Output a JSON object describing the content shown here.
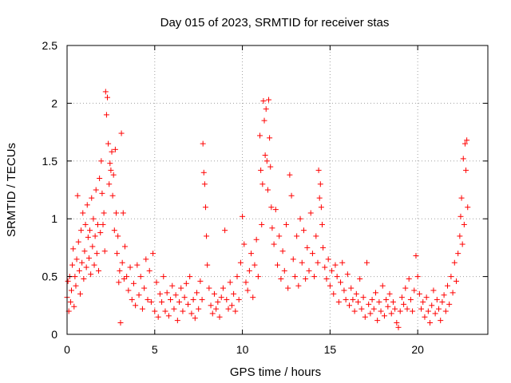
{
  "colors": {
    "marker": "#ff0000",
    "grid": "#a0a0a0",
    "axis": "#000000"
  },
  "chart_data": {
    "type": "scatter",
    "title": "Day 015 of 2023, SRMTID for receiver stas",
    "xlabel": "GPS time / hours",
    "ylabel": "SRMTID / TECUs",
    "xlim": [
      0,
      24
    ],
    "ylim": [
      0,
      2.5
    ],
    "xticks": [
      0,
      5,
      10,
      15,
      20
    ],
    "xtick_labels": [
      "0",
      "5",
      "10",
      "15",
      "20"
    ],
    "yticks": [
      0,
      0.5,
      1,
      1.5,
      2,
      2.5
    ],
    "ytick_labels": [
      "0",
      "0.5",
      "1",
      "1.5",
      "2",
      "2.5"
    ],
    "grid": true,
    "marker": "+",
    "series": [
      {
        "name": "SRMTID",
        "x": [
          0.0,
          0.05,
          0.1,
          0.15,
          0.2,
          0.25,
          0.3,
          0.35,
          0.4,
          0.45,
          0.5,
          0.55,
          0.6,
          0.65,
          0.7,
          0.75,
          0.8,
          0.85,
          0.9,
          0.95,
          1.0,
          1.05,
          1.1,
          1.15,
          1.2,
          1.25,
          1.3,
          1.35,
          1.4,
          1.45,
          1.5,
          1.55,
          1.6,
          1.65,
          1.7,
          1.75,
          1.8,
          1.85,
          1.9,
          1.95,
          2.0,
          2.05,
          2.1,
          2.15,
          2.2,
          2.25,
          2.3,
          2.35,
          2.4,
          2.45,
          2.5,
          2.55,
          2.6,
          2.65,
          2.7,
          2.75,
          2.8,
          2.85,
          2.9,
          2.95,
          3.0,
          3.05,
          3.1,
          3.15,
          3.2,
          3.25,
          3.3,
          3.4,
          3.5,
          3.6,
          3.7,
          3.8,
          3.9,
          4.0,
          4.1,
          4.2,
          4.3,
          4.4,
          4.5,
          4.6,
          4.7,
          4.8,
          4.9,
          5.0,
          5.1,
          5.2,
          5.3,
          5.4,
          5.5,
          5.6,
          5.7,
          5.8,
          5.9,
          6.0,
          6.1,
          6.2,
          6.3,
          6.4,
          6.5,
          6.6,
          6.7,
          6.8,
          6.9,
          7.0,
          7.1,
          7.2,
          7.3,
          7.4,
          7.5,
          7.6,
          7.7,
          7.75,
          7.8,
          7.85,
          7.9,
          7.95,
          8.0,
          8.1,
          8.2,
          8.3,
          8.4,
          8.5,
          8.6,
          8.7,
          8.8,
          8.9,
          9.0,
          9.1,
          9.2,
          9.3,
          9.4,
          9.5,
          9.6,
          9.7,
          9.8,
          9.9,
          10.0,
          10.1,
          10.2,
          10.3,
          10.4,
          10.5,
          10.6,
          10.7,
          10.8,
          10.9,
          11.0,
          11.05,
          11.1,
          11.15,
          11.2,
          11.25,
          11.3,
          11.35,
          11.4,
          11.45,
          11.5,
          11.55,
          11.6,
          11.65,
          11.7,
          11.8,
          11.9,
          12.0,
          12.1,
          12.2,
          12.3,
          12.4,
          12.5,
          12.6,
          12.7,
          12.8,
          12.9,
          13.0,
          13.1,
          13.2,
          13.3,
          13.4,
          13.5,
          13.6,
          13.7,
          13.8,
          13.9,
          14.0,
          14.1,
          14.2,
          14.3,
          14.35,
          14.4,
          14.45,
          14.5,
          14.55,
          14.6,
          14.7,
          14.8,
          14.9,
          15.0,
          15.1,
          15.2,
          15.3,
          15.4,
          15.5,
          15.6,
          15.7,
          15.8,
          15.9,
          16.0,
          16.1,
          16.2,
          16.3,
          16.4,
          16.5,
          16.6,
          16.7,
          16.8,
          16.9,
          17.0,
          17.1,
          17.2,
          17.3,
          17.4,
          17.5,
          17.6,
          17.7,
          17.8,
          17.9,
          18.0,
          18.1,
          18.2,
          18.3,
          18.4,
          18.5,
          18.6,
          18.7,
          18.8,
          18.9,
          19.0,
          19.1,
          19.2,
          19.3,
          19.4,
          19.5,
          19.6,
          19.7,
          19.8,
          19.9,
          20.0,
          20.1,
          20.2,
          20.3,
          20.4,
          20.5,
          20.6,
          20.7,
          20.8,
          20.9,
          21.0,
          21.1,
          21.2,
          21.3,
          21.4,
          21.5,
          21.6,
          21.7,
          21.8,
          21.9,
          22.0,
          22.1,
          22.2,
          22.3,
          22.4,
          22.45,
          22.5,
          22.55,
          22.6,
          22.65,
          22.7,
          22.75,
          22.8,
          22.85
        ],
        "y": [
          0.32,
          0.46,
          0.2,
          0.5,
          0.28,
          0.38,
          0.6,
          0.74,
          0.24,
          0.5,
          0.42,
          0.65,
          1.2,
          0.8,
          0.55,
          0.35,
          0.9,
          0.62,
          1.05,
          0.48,
          0.72,
          0.95,
          0.58,
          1.12,
          0.84,
          0.66,
          0.9,
          0.52,
          1.18,
          0.76,
          1.0,
          0.6,
          0.85,
          1.25,
          0.7,
          0.95,
          0.55,
          1.35,
          0.88,
          1.5,
          1.22,
          0.95,
          1.05,
          0.72,
          2.1,
          1.9,
          2.05,
          1.65,
          1.3,
          1.48,
          1.42,
          1.58,
          1.2,
          1.38,
          0.9,
          1.6,
          1.05,
          0.7,
          0.85,
          0.45,
          0.55,
          0.1,
          1.74,
          0.62,
          1.05,
          0.48,
          0.76,
          0.5,
          0.38,
          0.58,
          0.3,
          0.44,
          0.25,
          0.6,
          0.34,
          0.5,
          0.22,
          0.4,
          0.65,
          0.3,
          0.55,
          0.28,
          0.7,
          0.2,
          0.45,
          0.15,
          0.35,
          0.28,
          0.5,
          0.2,
          0.36,
          0.16,
          0.3,
          0.42,
          0.22,
          0.34,
          0.12,
          0.28,
          0.4,
          0.2,
          0.32,
          0.44,
          0.26,
          0.5,
          0.18,
          0.3,
          0.14,
          0.36,
          0.22,
          0.46,
          0.3,
          1.65,
          1.4,
          1.3,
          1.1,
          0.85,
          0.6,
          0.4,
          0.25,
          0.18,
          0.35,
          0.22,
          0.28,
          0.15,
          0.32,
          0.4,
          0.9,
          0.3,
          0.22,
          0.45,
          0.25,
          0.35,
          0.2,
          0.5,
          0.3,
          0.62,
          1.02,
          0.78,
          0.45,
          0.38,
          0.55,
          0.7,
          0.32,
          0.6,
          0.82,
          0.5,
          1.72,
          1.42,
          0.95,
          1.3,
          2.02,
          1.85,
          1.55,
          1.95,
          1.5,
          1.25,
          2.03,
          1.7,
          1.45,
          1.1,
          0.92,
          0.78,
          1.08,
          0.6,
          0.85,
          0.48,
          0.72,
          0.55,
          0.95,
          0.4,
          1.38,
          1.2,
          0.65,
          0.5,
          0.85,
          0.42,
          1.0,
          0.62,
          0.9,
          0.48,
          0.75,
          0.55,
          1.05,
          0.7,
          0.5,
          0.85,
          0.62,
          1.42,
          1.18,
          1.3,
          1.1,
          0.95,
          0.75,
          0.58,
          0.48,
          0.65,
          0.42,
          0.55,
          0.35,
          0.6,
          0.5,
          0.28,
          0.45,
          0.62,
          0.38,
          0.3,
          0.52,
          0.25,
          0.4,
          0.3,
          0.2,
          0.35,
          0.28,
          0.48,
          0.22,
          0.32,
          0.15,
          0.62,
          0.26,
          0.18,
          0.3,
          0.22,
          0.36,
          0.12,
          0.28,
          0.2,
          0.42,
          0.16,
          0.3,
          0.24,
          0.35,
          0.18,
          0.28,
          0.22,
          0.1,
          0.06,
          0.2,
          0.32,
          0.26,
          0.4,
          0.22,
          0.48,
          0.3,
          0.2,
          0.38,
          0.68,
          0.5,
          0.35,
          0.22,
          0.28,
          0.15,
          0.32,
          0.2,
          0.1,
          0.25,
          0.38,
          0.18,
          0.3,
          0.22,
          0.12,
          0.28,
          0.34,
          0.2,
          0.42,
          0.26,
          0.5,
          0.36,
          0.62,
          0.46,
          0.7,
          0.85,
          1.02,
          1.18,
          0.78,
          1.52,
          0.95,
          1.65,
          1.42,
          1.68,
          1.1
        ]
      }
    ]
  }
}
